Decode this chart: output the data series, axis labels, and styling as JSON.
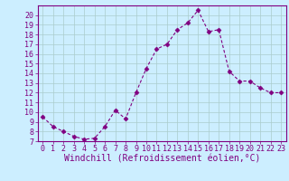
{
  "x": [
    0,
    1,
    2,
    3,
    4,
    5,
    6,
    7,
    8,
    9,
    10,
    11,
    12,
    13,
    14,
    15,
    16,
    17,
    18,
    19,
    20,
    21,
    22,
    23
  ],
  "y": [
    9.5,
    8.5,
    8.0,
    7.5,
    7.2,
    7.3,
    8.5,
    10.2,
    9.3,
    12.0,
    14.5,
    16.5,
    17.0,
    18.5,
    19.2,
    20.5,
    18.3,
    18.5,
    14.2,
    13.2,
    13.2,
    12.5,
    12.0,
    12.0
  ],
  "line_color": "#800080",
  "marker": "D",
  "marker_size": 2.5,
  "background_color": "#cceeff",
  "grid_color": "#aacccc",
  "xlabel": "Windchill (Refroidissement éolien,°C)",
  "xlim": [
    -0.5,
    23.5
  ],
  "ylim": [
    7,
    21
  ],
  "yticks": [
    7,
    8,
    9,
    10,
    11,
    12,
    13,
    14,
    15,
    16,
    17,
    18,
    19,
    20
  ],
  "xticks": [
    0,
    1,
    2,
    3,
    4,
    5,
    6,
    7,
    8,
    9,
    10,
    11,
    12,
    13,
    14,
    15,
    16,
    17,
    18,
    19,
    20,
    21,
    22,
    23
  ],
  "xlabel_color": "#800080",
  "tick_color": "#800080",
  "spine_color": "#800080",
  "xlabel_fontsize": 7,
  "tick_fontsize": 6
}
